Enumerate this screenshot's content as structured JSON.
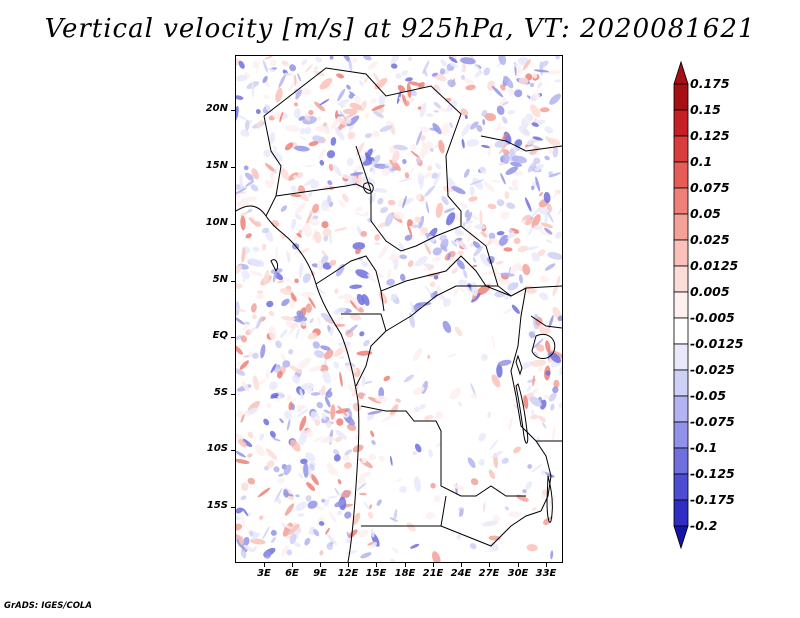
{
  "title": "Vertical velocity [m/s] at 925hPa, VT: 2020081621",
  "footer": "GrADS: IGES/COLA",
  "map": {
    "lat_labels": [
      "20N",
      "15N",
      "10N",
      "5N",
      "EQ",
      "5S",
      "10S",
      "15S"
    ],
    "lon_labels": [
      "3E",
      "6E",
      "9E",
      "12E",
      "15E",
      "18E",
      "21E",
      "24E",
      "27E",
      "30E",
      "33E"
    ]
  },
  "colorbar": {
    "levels": [
      "0.175",
      "0.15",
      "0.125",
      "0.1",
      "0.075",
      "0.05",
      "0.025",
      "0.0125",
      "0.005",
      "-0.005",
      "-0.0125",
      "-0.025",
      "-0.05",
      "-0.075",
      "-0.1",
      "-0.125",
      "-0.175",
      "-0.2"
    ],
    "colors": [
      "#a50f15",
      "#c42025",
      "#d83c3c",
      "#e65d58",
      "#ee8077",
      "#f4a198",
      "#f9c1b9",
      "#fbdcd6",
      "#fdf0ee",
      "#ffffff",
      "#e9e9fb",
      "#cfd0f6",
      "#b2b3f0",
      "#9293e8",
      "#6f70de",
      "#4c4dd3",
      "#2e2ec2",
      "#1414a8"
    ]
  }
}
